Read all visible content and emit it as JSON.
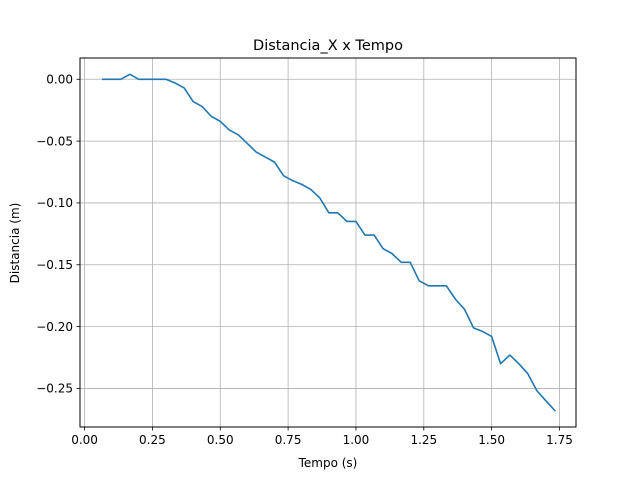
{
  "chart_data": {
    "type": "line",
    "title": "Distancia_X x Tempo",
    "xlabel": "Tempo (s)",
    "ylabel": "Distancia (m)",
    "xlim": [
      -0.0168,
      1.8108
    ],
    "ylim": [
      -0.2812,
      0.0172
    ],
    "xticks": [
      0.0,
      0.25,
      0.5,
      0.75,
      1.0,
      1.25,
      1.5,
      1.75
    ],
    "xtick_labels": [
      "0.00",
      "0.25",
      "0.50",
      "0.75",
      "1.00",
      "1.25",
      "1.50",
      "1.75"
    ],
    "yticks": [
      0.0,
      -0.05,
      -0.1,
      -0.15,
      -0.2,
      -0.25
    ],
    "ytick_labels": [
      "0.00",
      "−0.05",
      "−0.10",
      "−0.15",
      "−0.20",
      "−0.25"
    ],
    "grid": true,
    "line_color": "#1f77b4",
    "series": [
      {
        "x": [
          0.067,
          0.133,
          0.167,
          0.2,
          0.233,
          0.267,
          0.3,
          0.333,
          0.367,
          0.4,
          0.433,
          0.467,
          0.5,
          0.533,
          0.567,
          0.6,
          0.633,
          0.667,
          0.7,
          0.733,
          0.767,
          0.8,
          0.833,
          0.867,
          0.9,
          0.933,
          0.967,
          1.0,
          1.033,
          1.067,
          1.1,
          1.133,
          1.167,
          1.2,
          1.233,
          1.267,
          1.3,
          1.333,
          1.367,
          1.4,
          1.433,
          1.467,
          1.5,
          1.533,
          1.567,
          1.6,
          1.633,
          1.667,
          1.7,
          1.733
        ],
        "y": [
          0.0,
          0.0,
          0.004,
          0.0,
          0.0,
          0.0,
          0.0,
          -0.003,
          -0.007,
          -0.018,
          -0.022,
          -0.03,
          -0.034,
          -0.041,
          -0.045,
          -0.052,
          -0.059,
          -0.063,
          -0.067,
          -0.078,
          -0.082,
          -0.085,
          -0.089,
          -0.096,
          -0.108,
          -0.108,
          -0.115,
          -0.115,
          -0.126,
          -0.126,
          -0.137,
          -0.141,
          -0.148,
          -0.148,
          -0.163,
          -0.167,
          -0.167,
          -0.167,
          -0.178,
          -0.186,
          -0.201,
          -0.204,
          -0.208,
          -0.23,
          -0.223,
          -0.23,
          -0.238,
          -0.252,
          -0.26,
          -0.268
        ]
      }
    ]
  }
}
